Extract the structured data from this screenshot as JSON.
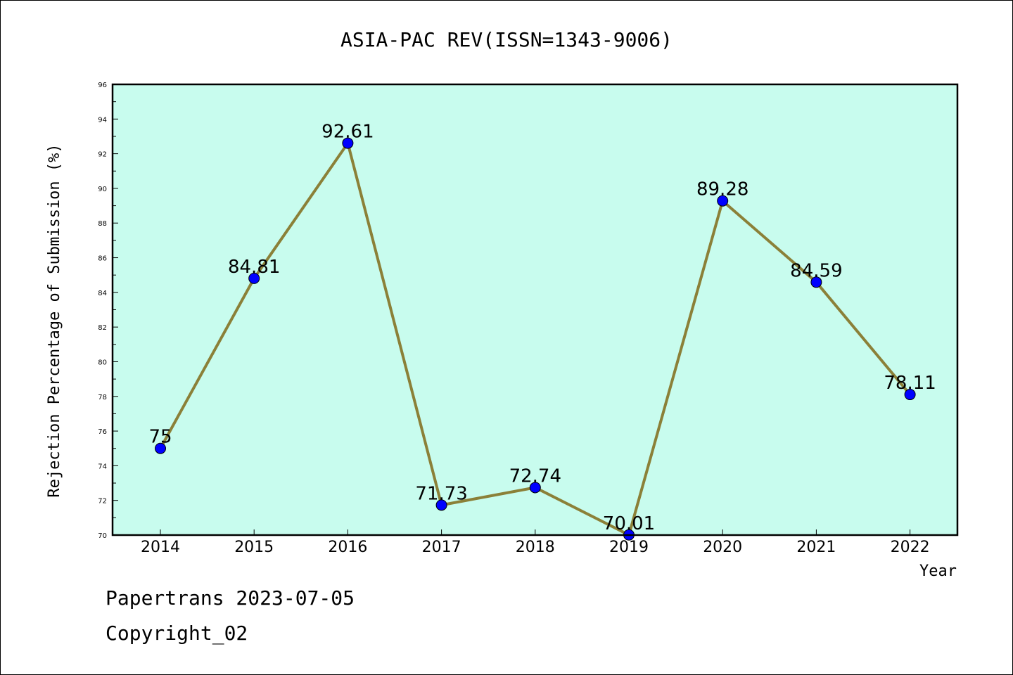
{
  "chart_data": {
    "type": "line",
    "title": "ASIA-PAC REV(ISSN=1343-9006)",
    "xlabel": "Year",
    "ylabel": "Rejection Percentage of Submission (%)",
    "categories": [
      "2014",
      "2015",
      "2016",
      "2017",
      "2018",
      "2019",
      "2020",
      "2021",
      "2022"
    ],
    "values": [
      75,
      84.81,
      92.61,
      71.73,
      72.74,
      70.01,
      89.28,
      84.59,
      78.11
    ],
    "data_labels": [
      "75",
      "84.81",
      "92.61",
      "71.73",
      "72.74",
      "70.01",
      "89.28",
      "84.59",
      "78.11"
    ],
    "ylim": [
      70,
      96
    ],
    "yticks": [
      "70",
      "72",
      "74",
      "76",
      "78",
      "80",
      "82",
      "84",
      "86",
      "88",
      "90",
      "92",
      "94",
      "96"
    ],
    "grid": false,
    "colors": {
      "plot_background": "#c8fcee",
      "line": "#8b8038",
      "marker": "#0000ff"
    }
  },
  "footer": {
    "line1": "Papertrans 2023-07-05",
    "line2": "Copyright_02"
  }
}
